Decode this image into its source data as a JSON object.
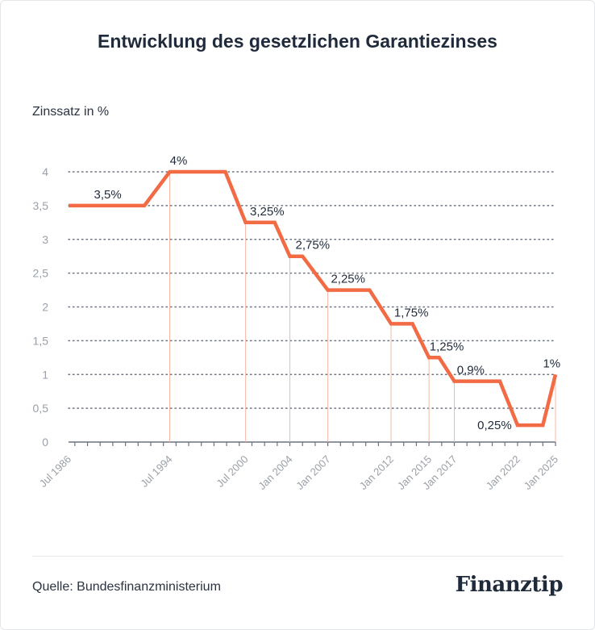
{
  "title": "Entwicklung des gesetzlichen Garantiezinses",
  "source": "Quelle: Bundesfinanzministerium",
  "brand": "Finanztip",
  "colors": {
    "line": "#f26b45",
    "text": "#1f2a3a",
    "tick": "#9aa0a8",
    "grid": "#6b7280",
    "drop": "#f7b8a6"
  },
  "chart_data": {
    "type": "line",
    "title": "Entwicklung des gesetzlichen Garantiezinses",
    "ylabel": "Zinssatz in %",
    "xlabel": "",
    "ylim": [
      0,
      4
    ],
    "yticks": [
      0,
      0.5,
      1,
      1.5,
      2,
      2.5,
      3,
      3.5,
      4
    ],
    "ytick_labels": [
      "0",
      "0,5",
      "1",
      "1,5",
      "2",
      "2,5",
      "3",
      "3,5",
      "4"
    ],
    "xlim": [
      1986.5,
      2025.0
    ],
    "xticks": [
      {
        "x": 1986.5,
        "label": "Jul 1986"
      },
      {
        "x": 1994.5,
        "label": "Jul 1994"
      },
      {
        "x": 2000.5,
        "label": "Jul 2000"
      },
      {
        "x": 2004.0,
        "label": "Jan 2004"
      },
      {
        "x": 2007.0,
        "label": "Jan 2007"
      },
      {
        "x": 2012.0,
        "label": "Jan 2012"
      },
      {
        "x": 2015.0,
        "label": "Jan 2015"
      },
      {
        "x": 2017.0,
        "label": "Jan 2017"
      },
      {
        "x": 2022.0,
        "label": "Jan 2022"
      },
      {
        "x": 2025.0,
        "label": "Jan 2025"
      }
    ],
    "line_points": [
      {
        "x": 1986.5,
        "y": 3.5
      },
      {
        "x": 1992.5,
        "y": 3.5
      },
      {
        "x": 1994.5,
        "y": 4.0
      },
      {
        "x": 1998.9,
        "y": 4.0
      },
      {
        "x": 2000.5,
        "y": 3.25
      },
      {
        "x": 2002.8,
        "y": 3.25
      },
      {
        "x": 2004.0,
        "y": 2.75
      },
      {
        "x": 2005.0,
        "y": 2.75
      },
      {
        "x": 2007.0,
        "y": 2.25
      },
      {
        "x": 2010.3,
        "y": 2.25
      },
      {
        "x": 2012.0,
        "y": 1.75
      },
      {
        "x": 2013.7,
        "y": 1.75
      },
      {
        "x": 2015.0,
        "y": 1.25
      },
      {
        "x": 2015.8,
        "y": 1.25
      },
      {
        "x": 2017.0,
        "y": 0.9
      },
      {
        "x": 2020.6,
        "y": 0.9
      },
      {
        "x": 2022.0,
        "y": 0.25
      },
      {
        "x": 2024.0,
        "y": 0.25
      },
      {
        "x": 2025.0,
        "y": 1.0
      }
    ],
    "data_labels": [
      {
        "x": 1989.6,
        "y": 3.5,
        "text": "3,5%",
        "pos": "above"
      },
      {
        "x": 1995.2,
        "y": 4.0,
        "text": "4%",
        "pos": "above"
      },
      {
        "x": 2002.2,
        "y": 3.25,
        "text": "3,25%",
        "pos": "above"
      },
      {
        "x": 2005.8,
        "y": 2.75,
        "text": "2,75%",
        "pos": "above"
      },
      {
        "x": 2008.6,
        "y": 2.25,
        "text": "2,25%",
        "pos": "above"
      },
      {
        "x": 2013.6,
        "y": 1.75,
        "text": "1,75%",
        "pos": "above"
      },
      {
        "x": 2016.4,
        "y": 1.25,
        "text": "1,25%",
        "pos": "above"
      },
      {
        "x": 2018.3,
        "y": 0.9,
        "text": "0,9%",
        "pos": "above"
      },
      {
        "x": 2020.9,
        "y": 0.25,
        "text": "0,25%",
        "pos": "left"
      },
      {
        "x": 2024.7,
        "y": 1.0,
        "text": "1%",
        "pos": "above"
      }
    ],
    "drop_lines_x": [
      1994.5,
      2000.5,
      2004.0,
      2007.0,
      2012.0,
      2015.0,
      2017.0,
      2025.0
    ],
    "grid": true
  }
}
